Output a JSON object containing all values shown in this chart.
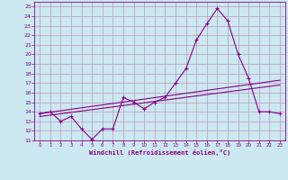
{
  "xlabel": "Windchill (Refroidissement éolien,°C)",
  "background_color": "#cce8f0",
  "line_color": "#880088",
  "grid_color": "#bb99bb",
  "xlim": [
    -0.5,
    23.5
  ],
  "ylim": [
    11,
    25.5
  ],
  "xticks": [
    0,
    1,
    2,
    3,
    4,
    5,
    6,
    7,
    8,
    9,
    10,
    11,
    12,
    13,
    14,
    15,
    16,
    17,
    18,
    19,
    20,
    21,
    22,
    23
  ],
  "yticks": [
    11,
    12,
    13,
    14,
    15,
    16,
    17,
    18,
    19,
    20,
    21,
    22,
    23,
    24,
    25
  ],
  "curve1_x": [
    0,
    1,
    2,
    3,
    4,
    5,
    6,
    7,
    8,
    9,
    10,
    11,
    12,
    13,
    14,
    15,
    16,
    17,
    18,
    19,
    20,
    21,
    22,
    23
  ],
  "curve1_y": [
    13.8,
    14.0,
    13.0,
    13.5,
    12.2,
    11.1,
    12.2,
    12.2,
    15.5,
    15.0,
    14.3,
    15.0,
    15.5,
    17.0,
    18.5,
    21.5,
    23.2,
    24.8,
    23.5,
    20.0,
    17.5,
    14.0,
    14.0,
    13.8
  ],
  "curve2_x": [
    0,
    23
  ],
  "curve2_y": [
    13.8,
    17.3
  ],
  "curve3_x": [
    0,
    23
  ],
  "curve3_y": [
    13.5,
    16.8
  ]
}
